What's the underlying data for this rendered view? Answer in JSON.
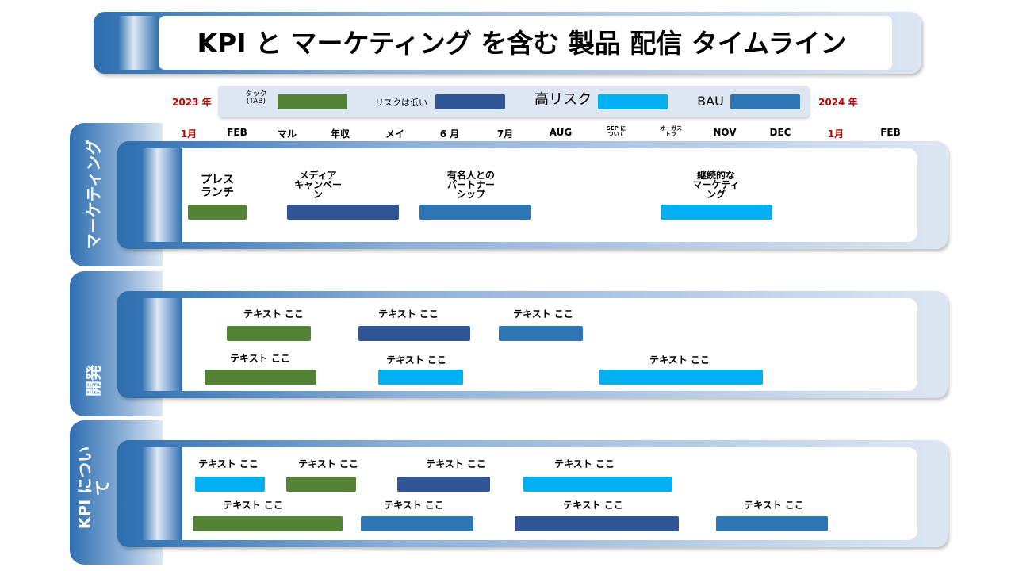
{
  "title": "KPI と マーケティング を含む 製品 配信 タイムライン",
  "legend": {
    "start_year": "2023 年",
    "end_year": "2024 年",
    "items": [
      "タック\n(TAB)",
      "リスクは低い",
      "高リスク",
      "BAU"
    ]
  },
  "months": [
    "1月",
    "FEB",
    "マル",
    "年収",
    "メイ",
    "6 月",
    "7月",
    "AUG",
    "SEP に\nついて",
    "オーガス\nトラ",
    "NOV",
    "DEC",
    "1月",
    "FEB"
  ],
  "sections": [
    {
      "name": "マーケティング",
      "items": [
        "プレス\nランチ",
        "メディア\nキャンペー\nン",
        "有名人との\nパートナー\nシップ",
        "継続的な\nマーケティ\nング"
      ]
    },
    {
      "name": "開発",
      "items": [
        "テキスト ここ",
        "テキスト ここ",
        "テキスト ここ",
        "テキスト ここ",
        "テキスト ここ",
        "テキスト ここ"
      ]
    },
    {
      "name": "KPI について",
      "items": [
        "テキスト ここ",
        "テキスト ここ",
        "テキスト ここ",
        "テキスト ここ",
        "テキスト ここ",
        "テキスト ここ",
        "テキスト ここ",
        "テキスト ここ"
      ]
    }
  ]
}
